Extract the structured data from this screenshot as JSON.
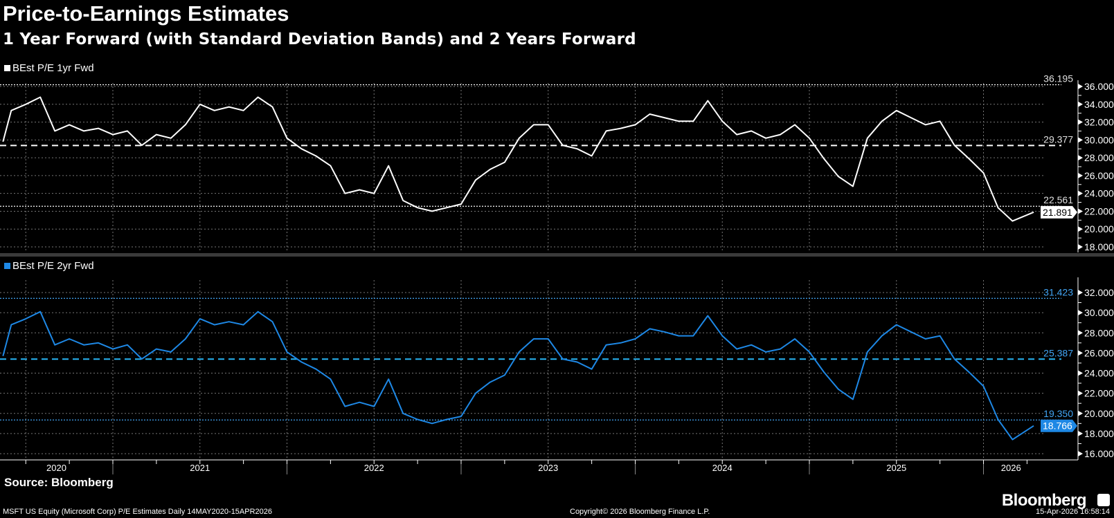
{
  "title": "Price-to-Earnings Estimates",
  "subtitle": "1 Year Forward (with Standard Deviation Bands) and 2 Years Forward",
  "source": "Source: Bloomberg",
  "footer": {
    "description": "MSFT US Equity (Microsoft Corp) P/E Estimates Daily 14MAY2020-15APR2026",
    "copyright": "Copyright© 2026 Bloomberg Finance L.P.",
    "timestamp": "15-Apr-2026 16:58:14",
    "brand": "Bloomberg"
  },
  "colors": {
    "series1": "#ffffff",
    "series2": "#1e88e5",
    "mean2": "#29b6f6",
    "background": "#000000"
  },
  "chart_data": [
    {
      "type": "line",
      "legend": "BEst P/E 1yr Fwd",
      "legend_placement": "top-left",
      "grid": true,
      "ylim": [
        18,
        36
      ],
      "yticks": [
        "18.000",
        "20.000",
        "22.000",
        "24.000",
        "26.000",
        "28.000",
        "30.000",
        "32.000",
        "34.000",
        "36.000"
      ],
      "bands": [
        {
          "label": "36.195",
          "value": 36.195,
          "style": "dotted"
        },
        {
          "label": "29.377",
          "value": 29.377,
          "style": "dashed"
        },
        {
          "label": "22.561",
          "value": 22.561,
          "style": "dotted"
        }
      ],
      "last_value_label": "21.891",
      "x": [
        "2020-05-14",
        "2020-06",
        "2020-07",
        "2020-08",
        "2020-09",
        "2020-10",
        "2020-11",
        "2020-12",
        "2021-01",
        "2021-02",
        "2021-03",
        "2021-04",
        "2021-05",
        "2021-06",
        "2021-07",
        "2021-08",
        "2021-09",
        "2021-10",
        "2021-11",
        "2021-12",
        "2022-01",
        "2022-02",
        "2022-03",
        "2022-04",
        "2022-05",
        "2022-06",
        "2022-07",
        "2022-08",
        "2022-09",
        "2022-10",
        "2022-11",
        "2022-12",
        "2023-01",
        "2023-02",
        "2023-03",
        "2023-04",
        "2023-05",
        "2023-06",
        "2023-07",
        "2023-08",
        "2023-09",
        "2023-10",
        "2023-11",
        "2023-12",
        "2024-01",
        "2024-02",
        "2024-03",
        "2024-04",
        "2024-05",
        "2024-06",
        "2024-07",
        "2024-08",
        "2024-09",
        "2024-10",
        "2024-11",
        "2024-12",
        "2025-01",
        "2025-02",
        "2025-03",
        "2025-04",
        "2025-05",
        "2025-06",
        "2025-07",
        "2025-08",
        "2025-09",
        "2025-10",
        "2025-11",
        "2025-12",
        "2026-01",
        "2026-02",
        "2026-03",
        "2026-04-15"
      ],
      "values": [
        29.8,
        33.3,
        34.0,
        34.8,
        31.0,
        31.7,
        31.0,
        31.3,
        30.6,
        31.0,
        29.4,
        30.6,
        30.2,
        31.7,
        34.0,
        33.3,
        33.7,
        33.3,
        34.8,
        33.7,
        30.2,
        29.0,
        28.2,
        27.1,
        24.0,
        24.4,
        24.0,
        27.1,
        23.2,
        22.4,
        22.0,
        22.4,
        22.8,
        25.5,
        26.7,
        27.5,
        30.2,
        31.7,
        31.7,
        29.4,
        29.0,
        28.2,
        31.0,
        31.3,
        31.7,
        32.9,
        32.5,
        32.1,
        32.1,
        34.4,
        32.1,
        30.6,
        31.0,
        30.2,
        30.6,
        31.7,
        30.2,
        27.9,
        25.9,
        24.8,
        30.2,
        32.1,
        33.3,
        32.5,
        31.7,
        32.1,
        29.4,
        27.9,
        26.3,
        22.4,
        20.9,
        21.891
      ]
    },
    {
      "type": "line",
      "legend": "BEst P/E 2yr Fwd",
      "legend_placement": "top-left",
      "grid": true,
      "ylim": [
        16,
        32
      ],
      "yticks": [
        "16.000",
        "18.000",
        "20.000",
        "22.000",
        "24.000",
        "26.000",
        "28.000",
        "30.000",
        "32.000"
      ],
      "bands": [
        {
          "label": "31.423",
          "value": 31.423,
          "style": "dotted"
        },
        {
          "label": "25.387",
          "value": 25.387,
          "style": "dashed"
        },
        {
          "label": "19.350",
          "value": 19.35,
          "style": "dotted"
        }
      ],
      "last_value_label": "18.766",
      "xticks": [
        "2020",
        "2021",
        "2022",
        "2023",
        "2024",
        "2025",
        "2026"
      ],
      "values": [
        25.7,
        28.8,
        29.4,
        30.1,
        26.8,
        27.4,
        26.8,
        27.0,
        26.4,
        26.8,
        25.4,
        26.4,
        26.1,
        27.4,
        29.4,
        28.8,
        29.1,
        28.8,
        30.1,
        29.1,
        26.1,
        25.1,
        24.4,
        23.4,
        20.7,
        21.1,
        20.7,
        23.4,
        20.0,
        19.4,
        19.0,
        19.4,
        19.7,
        22.0,
        23.1,
        23.8,
        26.1,
        27.4,
        27.4,
        25.4,
        25.1,
        24.4,
        26.8,
        27.0,
        27.4,
        28.4,
        28.1,
        27.7,
        27.7,
        29.7,
        27.7,
        26.4,
        26.8,
        26.1,
        26.4,
        27.4,
        26.1,
        24.1,
        22.4,
        21.4,
        26.1,
        27.7,
        28.8,
        28.1,
        27.4,
        27.7,
        25.4,
        24.1,
        22.7,
        19.4,
        17.4,
        18.766
      ]
    }
  ]
}
